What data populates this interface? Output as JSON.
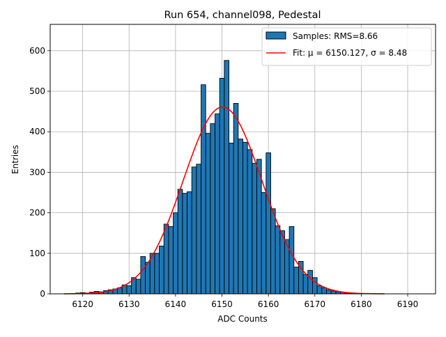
{
  "chart_data": {
    "type": "bar",
    "title": "Run 654, channel098, Pedestal",
    "xlabel": "ADC Counts",
    "ylabel": "Entries",
    "xlim": [
      6113,
      6196
    ],
    "ylim": [
      0,
      665
    ],
    "xticks": [
      6120,
      6130,
      6140,
      6150,
      6160,
      6170,
      6180,
      6190
    ],
    "yticks": [
      0,
      100,
      200,
      300,
      400,
      500,
      600
    ],
    "grid": true,
    "legend_position": "top-right",
    "legend": {
      "samples_label": "Samples: RMS=8.66",
      "fit_label": "Fit: μ = 6150.127, σ = 8.48"
    },
    "colors": {
      "bars": "#1f77b4",
      "bar_edge": "#000000",
      "fit": "#ff0000",
      "grid": "#b0b0b0"
    },
    "histogram": {
      "bin_width": 1,
      "x": [
        6119,
        6120,
        6121,
        6122,
        6123,
        6124,
        6125,
        6126,
        6127,
        6128,
        6129,
        6130,
        6131,
        6132,
        6133,
        6134,
        6135,
        6136,
        6137,
        6138,
        6139,
        6140,
        6141,
        6142,
        6143,
        6144,
        6145,
        6146,
        6147,
        6148,
        6149,
        6150,
        6151,
        6152,
        6153,
        6154,
        6155,
        6156,
        6157,
        6158,
        6159,
        6160,
        6161,
        6162,
        6163,
        6164,
        6165,
        6166,
        6167,
        6168,
        6169,
        6170,
        6171,
        6172,
        6173,
        6174,
        6175,
        6176,
        6177,
        6178,
        6179
      ],
      "values": [
        2,
        3,
        2,
        4,
        6,
        5,
        8,
        10,
        12,
        15,
        22,
        20,
        40,
        36,
        92,
        78,
        100,
        100,
        118,
        172,
        166,
        200,
        258,
        248,
        252,
        313,
        320,
        516,
        396,
        420,
        444,
        532,
        576,
        372,
        470,
        382,
        374,
        356,
        322,
        332,
        250,
        348,
        210,
        168,
        156,
        134,
        166,
        66,
        80,
        48,
        58,
        40,
        20,
        15,
        10,
        7,
        5,
        4,
        2,
        1,
        1
      ]
    },
    "fit": {
      "mu": 6150.127,
      "sigma": 8.48,
      "amplitude": 461,
      "x_range": [
        6116,
        6185
      ]
    }
  }
}
